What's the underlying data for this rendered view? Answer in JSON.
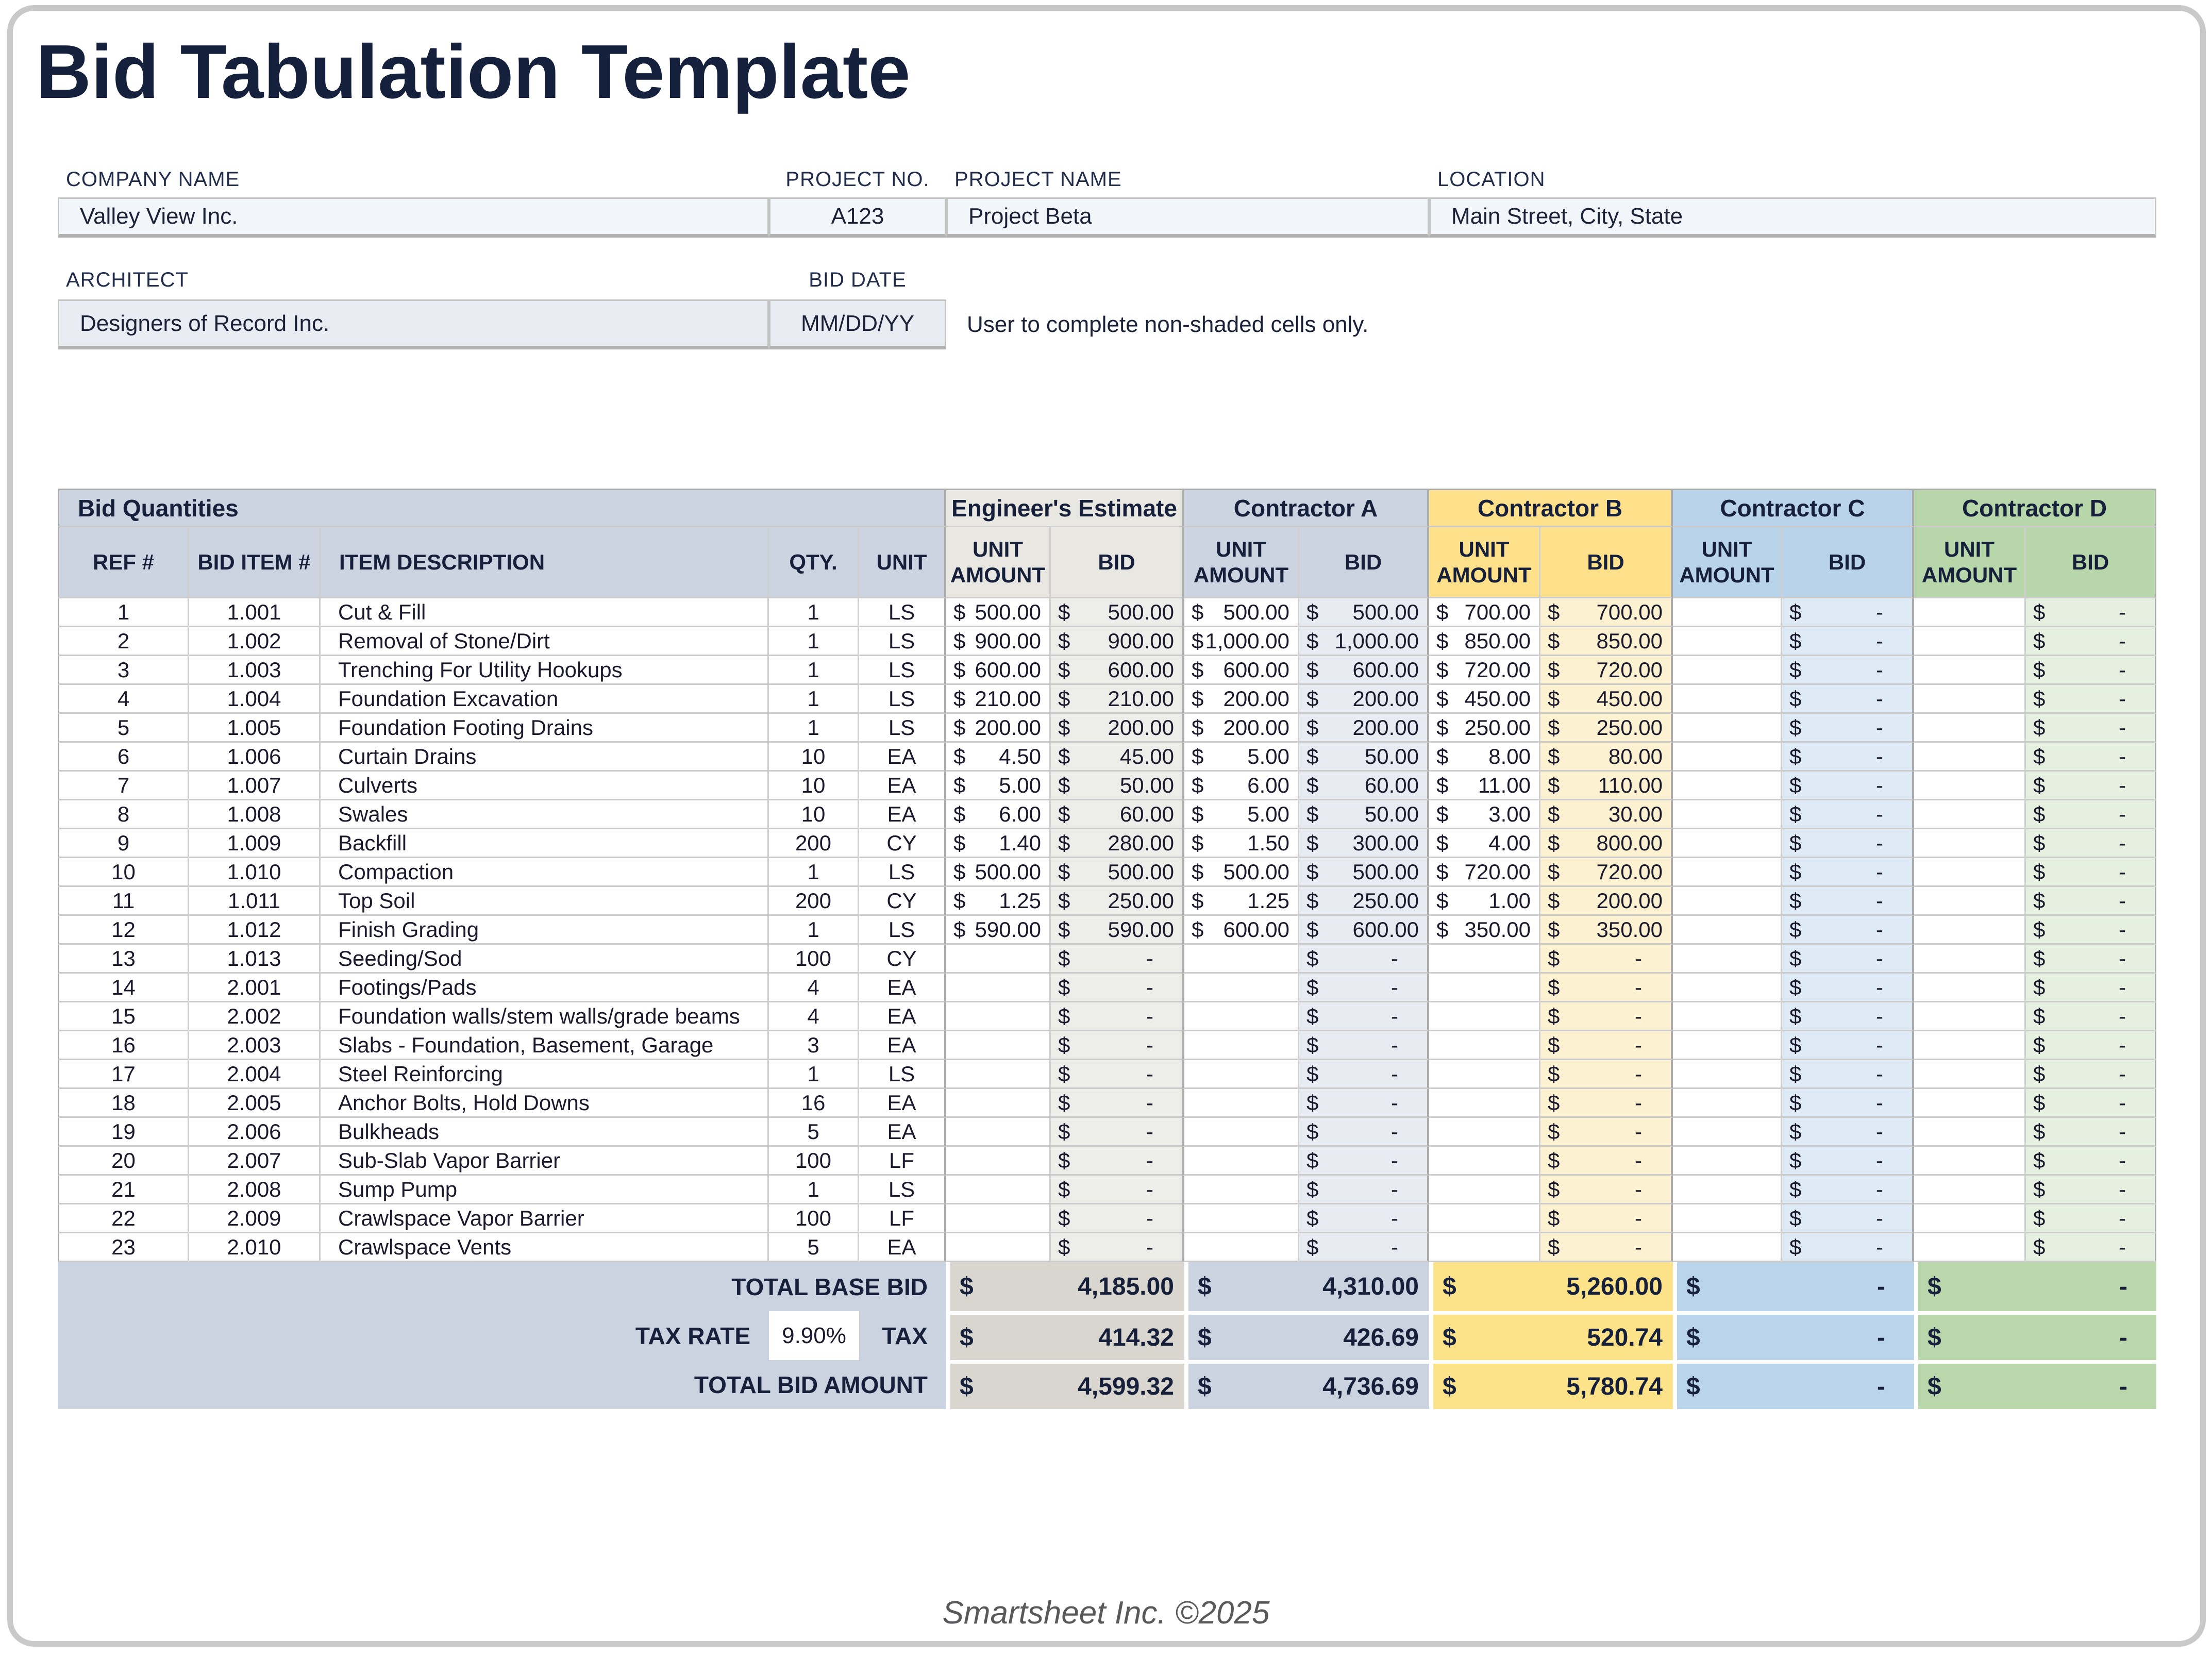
{
  "title": "Bid Tabulation Template",
  "currency": "$",
  "form": {
    "company_label": "COMPANY NAME",
    "company_value": "Valley View Inc.",
    "project_no_label": "PROJECT NO.",
    "project_no_value": "A123",
    "project_name_label": "PROJECT NAME",
    "project_name_value": "Project Beta",
    "location_label": "LOCATION",
    "location_value": "Main Street, City, State",
    "architect_label": "ARCHITECT",
    "architect_value": "Designers of Record Inc.",
    "bid_date_label": "BID DATE",
    "bid_date_value": "MM/DD/YY",
    "note": "User to complete non-shaded cells only."
  },
  "table": {
    "group_headers": {
      "bid_quantities": "Bid Quantities",
      "engineers_estimate": "Engineer's Estimate",
      "contractor_a": "Contractor A",
      "contractor_b": "Contractor B",
      "contractor_c": "Contractor C",
      "contractor_d": "Contractor D"
    },
    "columns": {
      "ref": "REF #",
      "item": "BID ITEM #",
      "desc": "ITEM DESCRIPTION",
      "qty": "QTY.",
      "unit": "UNIT",
      "unit_amount": "UNIT AMOUNT",
      "bid": "BID"
    },
    "rows": [
      {
        "ref": "1",
        "item": "1.001",
        "desc": "Cut & Fill",
        "qty": "1",
        "unit": "LS",
        "eng_unit": "500.00",
        "eng_bid": "500.00",
        "a_unit": "500.00",
        "a_bid": "500.00",
        "b_unit": "700.00",
        "b_bid": "700.00",
        "c_unit": "",
        "c_bid": "-",
        "d_unit": "",
        "d_bid": "-"
      },
      {
        "ref": "2",
        "item": "1.002",
        "desc": "Removal of Stone/Dirt",
        "qty": "1",
        "unit": "LS",
        "eng_unit": "900.00",
        "eng_bid": "900.00",
        "a_unit": "1,000.00",
        "a_bid": "1,000.00",
        "b_unit": "850.00",
        "b_bid": "850.00",
        "c_unit": "",
        "c_bid": "-",
        "d_unit": "",
        "d_bid": "-"
      },
      {
        "ref": "3",
        "item": "1.003",
        "desc": "Trenching For Utility Hookups",
        "qty": "1",
        "unit": "LS",
        "eng_unit": "600.00",
        "eng_bid": "600.00",
        "a_unit": "600.00",
        "a_bid": "600.00",
        "b_unit": "720.00",
        "b_bid": "720.00",
        "c_unit": "",
        "c_bid": "-",
        "d_unit": "",
        "d_bid": "-"
      },
      {
        "ref": "4",
        "item": "1.004",
        "desc": "Foundation Excavation",
        "qty": "1",
        "unit": "LS",
        "eng_unit": "210.00",
        "eng_bid": "210.00",
        "a_unit": "200.00",
        "a_bid": "200.00",
        "b_unit": "450.00",
        "b_bid": "450.00",
        "c_unit": "",
        "c_bid": "-",
        "d_unit": "",
        "d_bid": "-"
      },
      {
        "ref": "5",
        "item": "1.005",
        "desc": "Foundation Footing Drains",
        "qty": "1",
        "unit": "LS",
        "eng_unit": "200.00",
        "eng_bid": "200.00",
        "a_unit": "200.00",
        "a_bid": "200.00",
        "b_unit": "250.00",
        "b_bid": "250.00",
        "c_unit": "",
        "c_bid": "-",
        "d_unit": "",
        "d_bid": "-"
      },
      {
        "ref": "6",
        "item": "1.006",
        "desc": "Curtain Drains",
        "qty": "10",
        "unit": "EA",
        "eng_unit": "4.50",
        "eng_bid": "45.00",
        "a_unit": "5.00",
        "a_bid": "50.00",
        "b_unit": "8.00",
        "b_bid": "80.00",
        "c_unit": "",
        "c_bid": "-",
        "d_unit": "",
        "d_bid": "-"
      },
      {
        "ref": "7",
        "item": "1.007",
        "desc": "Culverts",
        "qty": "10",
        "unit": "EA",
        "eng_unit": "5.00",
        "eng_bid": "50.00",
        "a_unit": "6.00",
        "a_bid": "60.00",
        "b_unit": "11.00",
        "b_bid": "110.00",
        "c_unit": "",
        "c_bid": "-",
        "d_unit": "",
        "d_bid": "-"
      },
      {
        "ref": "8",
        "item": "1.008",
        "desc": "Swales",
        "qty": "10",
        "unit": "EA",
        "eng_unit": "6.00",
        "eng_bid": "60.00",
        "a_unit": "5.00",
        "a_bid": "50.00",
        "b_unit": "3.00",
        "b_bid": "30.00",
        "c_unit": "",
        "c_bid": "-",
        "d_unit": "",
        "d_bid": "-"
      },
      {
        "ref": "9",
        "item": "1.009",
        "desc": "Backfill",
        "qty": "200",
        "unit": "CY",
        "eng_unit": "1.40",
        "eng_bid": "280.00",
        "a_unit": "1.50",
        "a_bid": "300.00",
        "b_unit": "4.00",
        "b_bid": "800.00",
        "c_unit": "",
        "c_bid": "-",
        "d_unit": "",
        "d_bid": "-"
      },
      {
        "ref": "10",
        "item": "1.010",
        "desc": "Compaction",
        "qty": "1",
        "unit": "LS",
        "eng_unit": "500.00",
        "eng_bid": "500.00",
        "a_unit": "500.00",
        "a_bid": "500.00",
        "b_unit": "720.00",
        "b_bid": "720.00",
        "c_unit": "",
        "c_bid": "-",
        "d_unit": "",
        "d_bid": "-"
      },
      {
        "ref": "11",
        "item": "1.011",
        "desc": "Top Soil",
        "qty": "200",
        "unit": "CY",
        "eng_unit": "1.25",
        "eng_bid": "250.00",
        "a_unit": "1.25",
        "a_bid": "250.00",
        "b_unit": "1.00",
        "b_bid": "200.00",
        "c_unit": "",
        "c_bid": "-",
        "d_unit": "",
        "d_bid": "-"
      },
      {
        "ref": "12",
        "item": "1.012",
        "desc": "Finish Grading",
        "qty": "1",
        "unit": "LS",
        "eng_unit": "590.00",
        "eng_bid": "590.00",
        "a_unit": "600.00",
        "a_bid": "600.00",
        "b_unit": "350.00",
        "b_bid": "350.00",
        "c_unit": "",
        "c_bid": "-",
        "d_unit": "",
        "d_bid": "-"
      },
      {
        "ref": "13",
        "item": "1.013",
        "desc": "Seeding/Sod",
        "qty": "100",
        "unit": "CY",
        "eng_unit": "",
        "eng_bid": "-",
        "a_unit": "",
        "a_bid": "-",
        "b_unit": "",
        "b_bid": "-",
        "c_unit": "",
        "c_bid": "-",
        "d_unit": "",
        "d_bid": "-"
      },
      {
        "ref": "14",
        "item": "2.001",
        "desc": "Footings/Pads",
        "qty": "4",
        "unit": "EA",
        "eng_unit": "",
        "eng_bid": "-",
        "a_unit": "",
        "a_bid": "-",
        "b_unit": "",
        "b_bid": "-",
        "c_unit": "",
        "c_bid": "-",
        "d_unit": "",
        "d_bid": "-"
      },
      {
        "ref": "15",
        "item": "2.002",
        "desc": "Foundation walls/stem walls/grade beams",
        "qty": "4",
        "unit": "EA",
        "eng_unit": "",
        "eng_bid": "-",
        "a_unit": "",
        "a_bid": "-",
        "b_unit": "",
        "b_bid": "-",
        "c_unit": "",
        "c_bid": "-",
        "d_unit": "",
        "d_bid": "-"
      },
      {
        "ref": "16",
        "item": "2.003",
        "desc": "Slabs - Foundation, Basement, Garage",
        "qty": "3",
        "unit": "EA",
        "eng_unit": "",
        "eng_bid": "-",
        "a_unit": "",
        "a_bid": "-",
        "b_unit": "",
        "b_bid": "-",
        "c_unit": "",
        "c_bid": "-",
        "d_unit": "",
        "d_bid": "-"
      },
      {
        "ref": "17",
        "item": "2.004",
        "desc": "Steel Reinforcing",
        "qty": "1",
        "unit": "LS",
        "eng_unit": "",
        "eng_bid": "-",
        "a_unit": "",
        "a_bid": "-",
        "b_unit": "",
        "b_bid": "-",
        "c_unit": "",
        "c_bid": "-",
        "d_unit": "",
        "d_bid": "-"
      },
      {
        "ref": "18",
        "item": "2.005",
        "desc": "Anchor Bolts, Hold Downs",
        "qty": "16",
        "unit": "EA",
        "eng_unit": "",
        "eng_bid": "-",
        "a_unit": "",
        "a_bid": "-",
        "b_unit": "",
        "b_bid": "-",
        "c_unit": "",
        "c_bid": "-",
        "d_unit": "",
        "d_bid": "-"
      },
      {
        "ref": "19",
        "item": "2.006",
        "desc": "Bulkheads",
        "qty": "5",
        "unit": "EA",
        "eng_unit": "",
        "eng_bid": "-",
        "a_unit": "",
        "a_bid": "-",
        "b_unit": "",
        "b_bid": "-",
        "c_unit": "",
        "c_bid": "-",
        "d_unit": "",
        "d_bid": "-"
      },
      {
        "ref": "20",
        "item": "2.007",
        "desc": "Sub-Slab Vapor Barrier",
        "qty": "100",
        "unit": "LF",
        "eng_unit": "",
        "eng_bid": "-",
        "a_unit": "",
        "a_bid": "-",
        "b_unit": "",
        "b_bid": "-",
        "c_unit": "",
        "c_bid": "-",
        "d_unit": "",
        "d_bid": "-"
      },
      {
        "ref": "21",
        "item": "2.008",
        "desc": "Sump Pump",
        "qty": "1",
        "unit": "LS",
        "eng_unit": "",
        "eng_bid": "-",
        "a_unit": "",
        "a_bid": "-",
        "b_unit": "",
        "b_bid": "-",
        "c_unit": "",
        "c_bid": "-",
        "d_unit": "",
        "d_bid": "-"
      },
      {
        "ref": "22",
        "item": "2.009",
        "desc": "Crawlspace Vapor Barrier",
        "qty": "100",
        "unit": "LF",
        "eng_unit": "",
        "eng_bid": "-",
        "a_unit": "",
        "a_bid": "-",
        "b_unit": "",
        "b_bid": "-",
        "c_unit": "",
        "c_bid": "-",
        "d_unit": "",
        "d_bid": "-"
      },
      {
        "ref": "23",
        "item": "2.010",
        "desc": "Crawlspace Vents",
        "qty": "5",
        "unit": "EA",
        "eng_unit": "",
        "eng_bid": "-",
        "a_unit": "",
        "a_bid": "-",
        "b_unit": "",
        "b_bid": "-",
        "c_unit": "",
        "c_bid": "-",
        "d_unit": "",
        "d_bid": "-"
      }
    ],
    "totals": {
      "base_label": "TOTAL BASE BID",
      "tax_rate_label": "TAX RATE",
      "tax_rate_value": "9.90%",
      "tax_label": "TAX",
      "total_label": "TOTAL BID AMOUNT",
      "base": {
        "eng": "4,185.00",
        "a": "4,310.00",
        "b": "5,260.00",
        "c": "-",
        "d": "-"
      },
      "tax": {
        "eng": "414.32",
        "a": "426.69",
        "b": "520.74",
        "c": "-",
        "d": "-"
      },
      "total": {
        "eng": "4,599.32",
        "a": "4,736.69",
        "b": "5,780.74",
        "c": "-",
        "d": "-"
      }
    }
  },
  "footer": {
    "copyright": "Smartsheet Inc. ©2025"
  },
  "colors": {
    "title_navy": "#14203C",
    "header_blue_gray": "#CDD4E1",
    "engineer_header": "#E8E7E2",
    "engineer_bid_fill": "#EDEDE9",
    "engineer_total_fill": "#D8D6CE",
    "contractor_a_header": "#CDD4E1",
    "contractor_a_bid_fill": "#E9EBF2",
    "contractor_b_header": "#FFE18C",
    "contractor_b_bid_fill": "#FCF1D0",
    "contractor_c_header": "#B9D3EB",
    "contractor_c_bid_fill": "#DEEAF6",
    "contractor_d_header": "#B7D6A9",
    "contractor_d_bid_fill": "#E6F0E0",
    "totals_band_fill": "#CBD3E0",
    "field_fill_light": "#F2F5F9",
    "field_fill_shaded": "#E9ECF3",
    "frame_gray": "#C9C9C9",
    "footer_gray": "#58595B"
  }
}
